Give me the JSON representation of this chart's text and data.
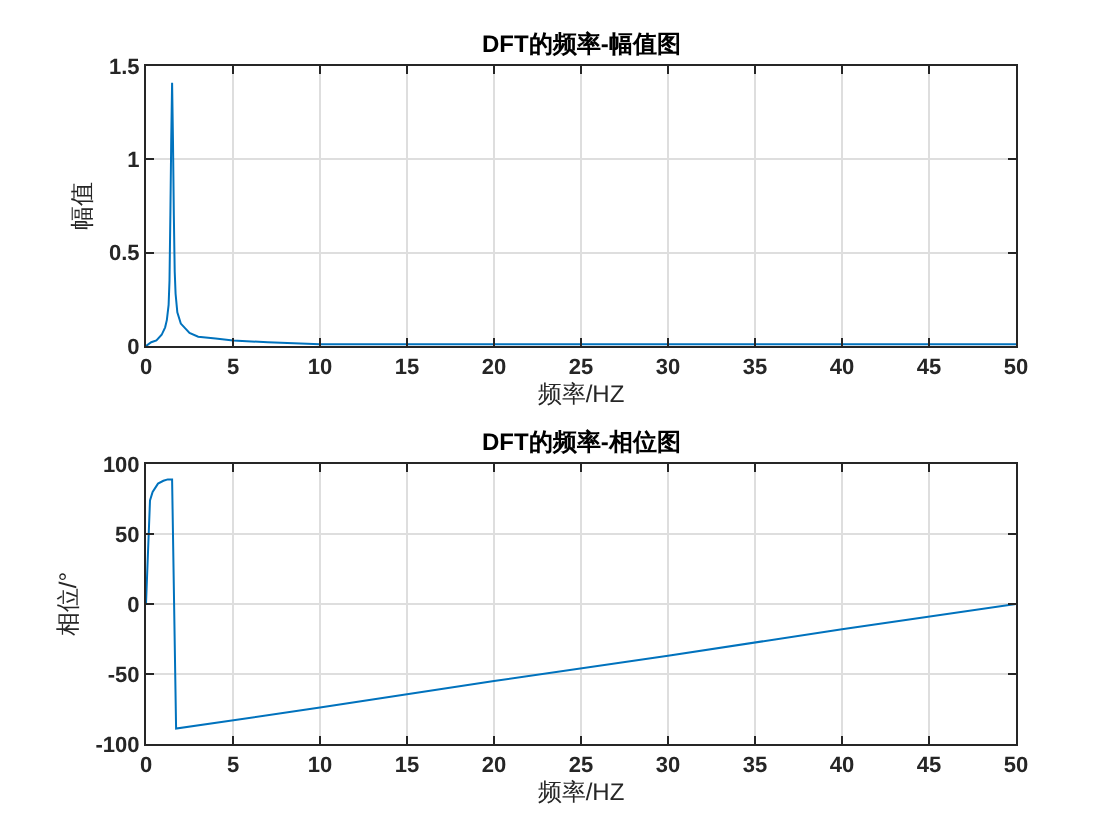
{
  "chart_data": [
    {
      "type": "line",
      "title": "DFT的频率-幅值图",
      "xlabel": "频率/HZ",
      "ylabel": "幅值",
      "x": [
        0,
        0.3,
        0.6,
        0.9,
        1.1,
        1.2,
        1.3,
        1.35,
        1.4,
        1.45,
        1.5,
        1.55,
        1.6,
        1.65,
        1.7,
        1.8,
        2.0,
        2.5,
        3,
        4,
        5,
        7,
        10,
        15,
        20,
        30,
        40,
        50
      ],
      "series": [
        {
          "color": "#0072bd",
          "values": [
            0,
            0.02,
            0.03,
            0.06,
            0.1,
            0.14,
            0.22,
            0.35,
            0.7,
            1.1,
            1.41,
            1.1,
            0.7,
            0.4,
            0.28,
            0.18,
            0.12,
            0.07,
            0.05,
            0.04,
            0.03,
            0.02,
            0.01,
            0.01,
            0.01,
            0.01,
            0.01,
            0.01
          ]
        }
      ],
      "xlim": [
        0,
        50
      ],
      "xticks": [
        0,
        5,
        10,
        15,
        20,
        25,
        30,
        35,
        40,
        45,
        50
      ],
      "ylim": [
        0,
        1.5
      ],
      "yticks": [
        0,
        0.5,
        1,
        1.5
      ],
      "grid": true
    },
    {
      "type": "line",
      "title": "DFT的频率-相位图",
      "xlabel": "频率/HZ",
      "ylabel": "相位/°",
      "x": [
        0,
        0.23,
        0.38,
        0.69,
        1.0,
        1.25,
        1.5,
        1.73,
        10,
        20,
        30,
        40,
        50
      ],
      "series": [
        {
          "color": "#0072bd",
          "values": [
            0,
            74,
            80,
            86,
            88,
            89,
            89,
            -89,
            -74,
            -55,
            -37,
            -18,
            0
          ]
        }
      ],
      "xlim": [
        0,
        50
      ],
      "xticks": [
        0,
        5,
        10,
        15,
        20,
        25,
        30,
        35,
        40,
        45,
        50
      ],
      "ylim": [
        -100,
        100
      ],
      "yticks": [
        -100,
        -50,
        0,
        50,
        100
      ],
      "grid": true
    }
  ]
}
